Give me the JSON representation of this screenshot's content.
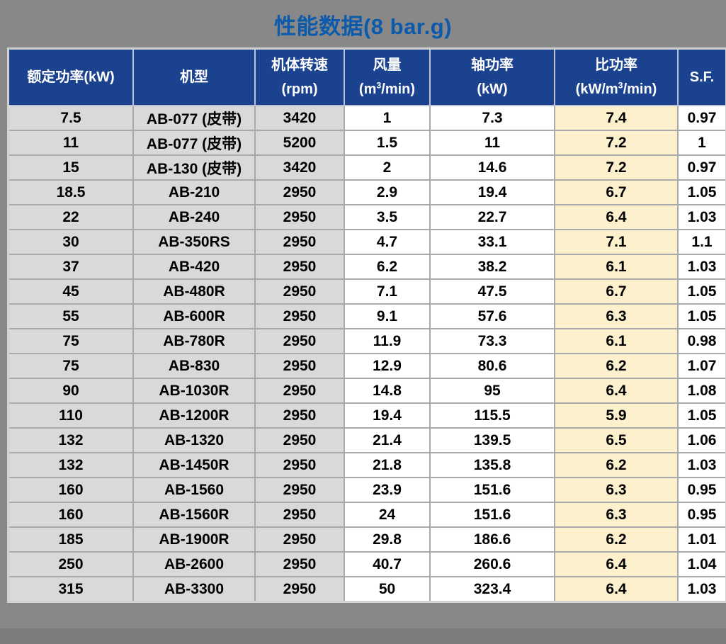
{
  "page": {
    "title": "性能数据(8 bar.g)",
    "title_color": "#0b5aab",
    "background_color": "#888888"
  },
  "table": {
    "header_bg_color": "#1a428f",
    "header_text_color": "#ffffff",
    "gray_column_color": "#d9d9d9",
    "white_column_color": "#ffffff",
    "highlight_column_color": "#fcf0cd",
    "columns": [
      {
        "id": "rated_power",
        "lines": [
          "额定功率(kW)"
        ]
      },
      {
        "id": "model",
        "lines": [
          "机型"
        ]
      },
      {
        "id": "speed",
        "lines": [
          "机体转速",
          "(rpm)"
        ]
      },
      {
        "id": "flow",
        "lines": [
          "风量",
          "(m³/min)"
        ]
      },
      {
        "id": "shaft_power",
        "lines": [
          "轴功率",
          "(kW)"
        ]
      },
      {
        "id": "specific_power",
        "lines": [
          "比功率",
          "(kW/m³/min)"
        ]
      },
      {
        "id": "sf",
        "lines": [
          "S.F."
        ]
      }
    ],
    "rows": [
      [
        "7.5",
        "AB-077 (皮带)",
        "3420",
        "1",
        "7.3",
        "7.4",
        "0.97"
      ],
      [
        "11",
        "AB-077 (皮带)",
        "5200",
        "1.5",
        "11",
        "7.2",
        "1"
      ],
      [
        "15",
        "AB-130 (皮带)",
        "3420",
        "2",
        "14.6",
        "7.2",
        "0.97"
      ],
      [
        "18.5",
        "AB-210",
        "2950",
        "2.9",
        "19.4",
        "6.7",
        "1.05"
      ],
      [
        "22",
        "AB-240",
        "2950",
        "3.5",
        "22.7",
        "6.4",
        "1.03"
      ],
      [
        "30",
        "AB-350RS",
        "2950",
        "4.7",
        "33.1",
        "7.1",
        "1.1"
      ],
      [
        "37",
        "AB-420",
        "2950",
        "6.2",
        "38.2",
        "6.1",
        "1.03"
      ],
      [
        "45",
        "AB-480R",
        "2950",
        "7.1",
        "47.5",
        "6.7",
        "1.05"
      ],
      [
        "55",
        "AB-600R",
        "2950",
        "9.1",
        "57.6",
        "6.3",
        "1.05"
      ],
      [
        "75",
        "AB-780R",
        "2950",
        "11.9",
        "73.3",
        "6.1",
        "0.98"
      ],
      [
        "75",
        "AB-830",
        "2950",
        "12.9",
        "80.6",
        "6.2",
        "1.07"
      ],
      [
        "90",
        "AB-1030R",
        "2950",
        "14.8",
        "95",
        "6.4",
        "1.08"
      ],
      [
        "110",
        "AB-1200R",
        "2950",
        "19.4",
        "115.5",
        "5.9",
        "1.05"
      ],
      [
        "132",
        "AB-1320",
        "2950",
        "21.4",
        "139.5",
        "6.5",
        "1.06"
      ],
      [
        "132",
        "AB-1450R",
        "2950",
        "21.8",
        "135.8",
        "6.2",
        "1.03"
      ],
      [
        "160",
        "AB-1560",
        "2950",
        "23.9",
        "151.6",
        "6.3",
        "0.95"
      ],
      [
        "160",
        "AB-1560R",
        "2950",
        "24",
        "151.6",
        "6.3",
        "0.95"
      ],
      [
        "185",
        "AB-1900R",
        "2950",
        "29.8",
        "186.6",
        "6.2",
        "1.01"
      ],
      [
        "250",
        "AB-2600",
        "2950",
        "40.7",
        "260.6",
        "6.4",
        "1.04"
      ],
      [
        "315",
        "AB-3300",
        "2950",
        "50",
        "323.4",
        "6.4",
        "1.03"
      ]
    ]
  }
}
